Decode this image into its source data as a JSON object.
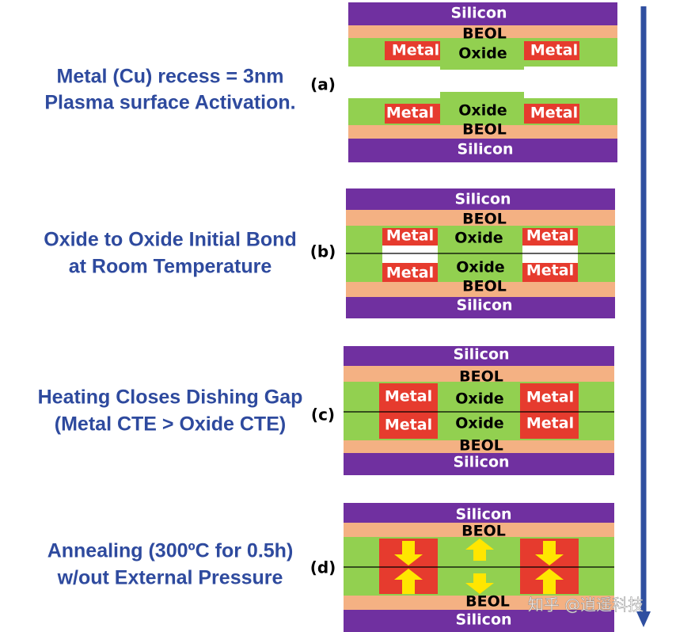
{
  "steps": [
    {
      "label": "(a)",
      "caption": [
        "Metal (Cu) recess = 3nm",
        "Plasma surface Activation."
      ],
      "layers": [
        "Silicon",
        "BEOL",
        "Metal",
        "Oxide",
        "Metal",
        "Metal",
        "Oxide",
        "Metal",
        "BEOL",
        "Silicon"
      ]
    },
    {
      "label": "(b)",
      "caption": [
        "Oxide to Oxide Initial Bond",
        "at Room Temperature"
      ],
      "layers": [
        "Silicon",
        "BEOL",
        "Metal",
        "Oxide",
        "Metal",
        "Metal",
        "Oxide",
        "Metal",
        "BEOL",
        "Silicon"
      ]
    },
    {
      "label": "(c)",
      "caption": [
        "Heating Closes Dishing Gap",
        "(Metal CTE > Oxide CTE)"
      ],
      "layers": [
        "Silicon",
        "BEOL",
        "Metal",
        "Oxide",
        "Metal",
        "Metal",
        "Oxide",
        "Metal",
        "BEOL",
        "Silicon"
      ]
    },
    {
      "label": "(d)",
      "caption": [
        "Annealing (300ºC for 0.5h)",
        "w/out External Pressure"
      ],
      "layers": [
        "Silicon",
        "BEOL",
        "BEOL",
        "Silicon"
      ]
    }
  ],
  "watermark": "知乎 @逍遥科技"
}
